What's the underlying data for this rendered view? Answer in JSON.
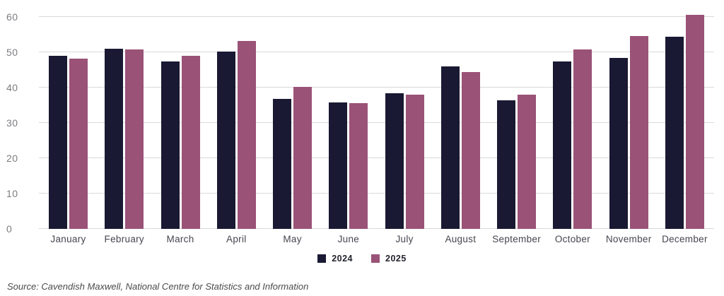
{
  "chart_data": {
    "type": "bar",
    "title": "",
    "xlabel": "",
    "ylabel": "",
    "categories": [
      "January",
      "February",
      "March",
      "April",
      "May",
      "June",
      "July",
      "August",
      "September",
      "October",
      "November",
      "December"
    ],
    "series": [
      {
        "name": "2024",
        "color": "#191933",
        "values": [
          49.0,
          51.1,
          47.5,
          50.2,
          36.9,
          35.8,
          38.4,
          46.0,
          36.4,
          47.4,
          48.5,
          54.5
        ]
      },
      {
        "name": "2025",
        "color": "#9A5277",
        "values": [
          48.2,
          50.9,
          49.0,
          53.2,
          40.3,
          35.6,
          38.1,
          44.4,
          38.1,
          50.8,
          54.6,
          60.7
        ]
      }
    ],
    "ylim": [
      0,
      60
    ],
    "yticks": [
      0,
      10,
      20,
      30,
      40,
      50,
      60
    ],
    "grid": "horizontal",
    "legend_position": "bottom-center"
  },
  "legend": {
    "items": [
      {
        "label": "2024",
        "color": "#191933"
      },
      {
        "label": "2025",
        "color": "#9A5277"
      }
    ]
  },
  "source": "Source: Cavendish Maxwell, National Centre for Statistics and Information",
  "colors": {
    "background": "#FFFFFF",
    "gridline": "#D9D9D9",
    "tick_label": "#7D7D82",
    "month_label": "#45454F",
    "legend_text": "#23232F",
    "source_text": "#4A4A4A"
  }
}
